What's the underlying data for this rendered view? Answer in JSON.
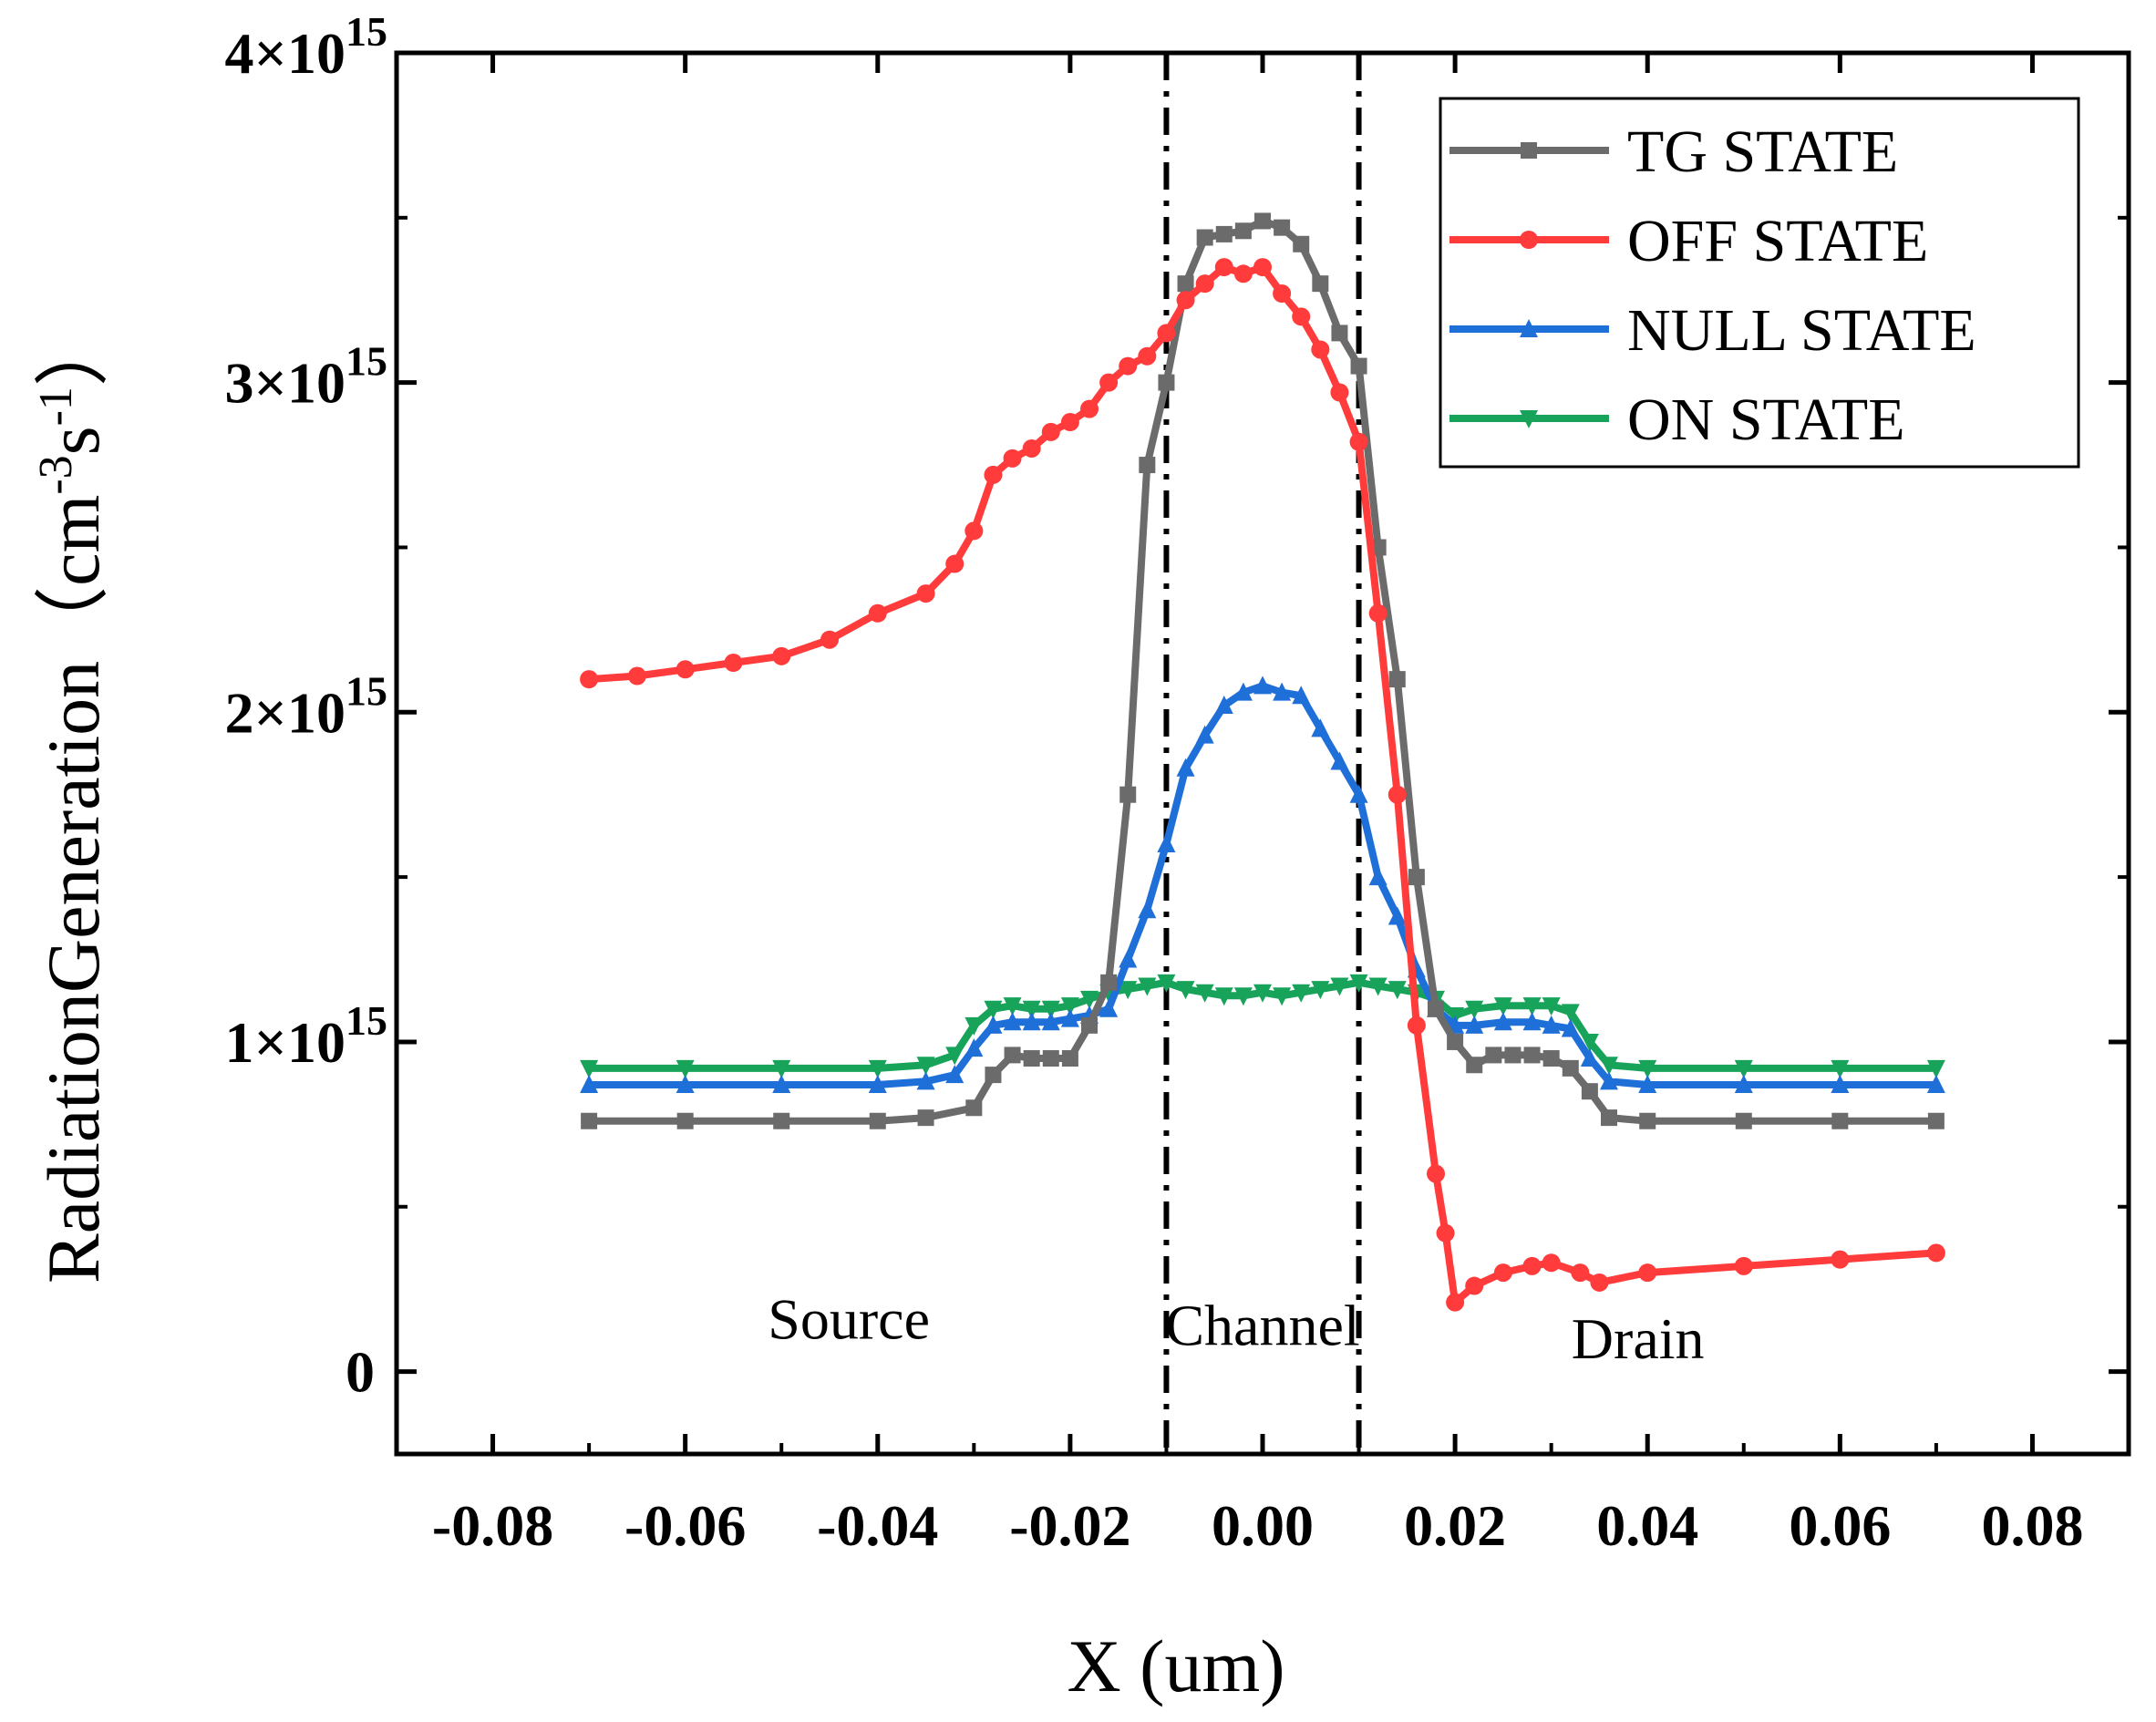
{
  "chart_data": {
    "type": "line",
    "title": "",
    "xlabel": "X (um)",
    "ylabel": "RadiationGeneration（cm-3s-1）",
    "ylabel_parts": {
      "main": "RadiationGeneration（cm",
      "sup1": "-3",
      "mid": "s",
      "sup2": "-1",
      "end": "）"
    },
    "xlim": [
      -0.09,
      0.09
    ],
    "ylim": [
      -0.25,
      4.0
    ],
    "y_unit_note": "values in units of 10^15",
    "xticks": [
      -0.08,
      -0.06,
      -0.04,
      -0.02,
      0.0,
      0.02,
      0.04,
      0.06,
      0.08
    ],
    "xtick_labels": [
      "-0.08",
      "-0.06",
      "-0.04",
      "-0.02",
      "0.00",
      "0.02",
      "0.04",
      "0.06",
      "0.08"
    ],
    "yticks": [
      0,
      1,
      2,
      3,
      4
    ],
    "ytick_labels": [
      {
        "value": 0,
        "base": "0",
        "exp": ""
      },
      {
        "value": 1,
        "base": "1×10",
        "exp": "15"
      },
      {
        "value": 2,
        "base": "2×10",
        "exp": "15"
      },
      {
        "value": 3,
        "base": "3×10",
        "exp": "15"
      },
      {
        "value": 4,
        "base": "4×10",
        "exp": "15"
      }
    ],
    "vlines": [
      -0.01,
      0.01
    ],
    "annotations": [
      {
        "text": "Source",
        "x": -0.043,
        "y": 0.1
      },
      {
        "text": "Channel",
        "x": 0.0,
        "y": 0.08
      },
      {
        "text": "Drain",
        "x": 0.039,
        "y": 0.04
      }
    ],
    "legend_position": "top-right",
    "series": [
      {
        "name": "TG STATE",
        "color": "#6b6b6b",
        "marker": "square",
        "x": [
          -0.07,
          -0.06,
          -0.05,
          -0.04,
          -0.035,
          -0.03,
          -0.028,
          -0.026,
          -0.024,
          -0.022,
          -0.02,
          -0.018,
          -0.016,
          -0.014,
          -0.012,
          -0.01,
          -0.008,
          -0.006,
          -0.004,
          -0.002,
          0.0,
          0.002,
          0.004,
          0.006,
          0.008,
          0.01,
          0.012,
          0.014,
          0.016,
          0.018,
          0.02,
          0.022,
          0.024,
          0.026,
          0.028,
          0.03,
          0.032,
          0.034,
          0.036,
          0.04,
          0.05,
          0.06,
          0.07
        ],
        "y": [
          0.76,
          0.76,
          0.76,
          0.76,
          0.77,
          0.8,
          0.9,
          0.96,
          0.95,
          0.95,
          0.95,
          1.05,
          1.18,
          1.75,
          2.75,
          3.0,
          3.3,
          3.44,
          3.45,
          3.46,
          3.49,
          3.47,
          3.42,
          3.3,
          3.15,
          3.05,
          2.5,
          2.1,
          1.5,
          1.1,
          1.0,
          0.93,
          0.96,
          0.96,
          0.96,
          0.95,
          0.92,
          0.85,
          0.77,
          0.76,
          0.76,
          0.76,
          0.76
        ]
      },
      {
        "name": "OFF STATE",
        "color": "#ff3b3b",
        "marker": "circle",
        "x": [
          -0.07,
          -0.065,
          -0.06,
          -0.055,
          -0.05,
          -0.045,
          -0.04,
          -0.035,
          -0.032,
          -0.03,
          -0.028,
          -0.026,
          -0.024,
          -0.022,
          -0.02,
          -0.018,
          -0.016,
          -0.014,
          -0.012,
          -0.01,
          -0.008,
          -0.006,
          -0.004,
          -0.002,
          0.0,
          0.002,
          0.004,
          0.006,
          0.008,
          0.01,
          0.012,
          0.014,
          0.016,
          0.018,
          0.019,
          0.02,
          0.022,
          0.025,
          0.028,
          0.03,
          0.033,
          0.035,
          0.04,
          0.05,
          0.06,
          0.07
        ],
        "y": [
          2.1,
          2.11,
          2.13,
          2.15,
          2.17,
          2.22,
          2.3,
          2.36,
          2.45,
          2.55,
          2.72,
          2.77,
          2.8,
          2.85,
          2.88,
          2.92,
          3.0,
          3.05,
          3.08,
          3.15,
          3.25,
          3.3,
          3.35,
          3.33,
          3.35,
          3.27,
          3.2,
          3.1,
          2.97,
          2.82,
          2.3,
          1.75,
          1.05,
          0.6,
          0.42,
          0.21,
          0.26,
          0.3,
          0.32,
          0.33,
          0.3,
          0.27,
          0.3,
          0.32,
          0.34,
          0.36
        ]
      },
      {
        "name": "NULL STATE",
        "color": "#1f6fd9",
        "marker": "triangle-up",
        "x": [
          -0.07,
          -0.06,
          -0.05,
          -0.04,
          -0.035,
          -0.032,
          -0.03,
          -0.028,
          -0.026,
          -0.024,
          -0.022,
          -0.02,
          -0.018,
          -0.016,
          -0.014,
          -0.012,
          -0.01,
          -0.008,
          -0.006,
          -0.004,
          -0.002,
          0.0,
          0.002,
          0.004,
          0.006,
          0.008,
          0.01,
          0.012,
          0.014,
          0.016,
          0.018,
          0.02,
          0.022,
          0.025,
          0.028,
          0.03,
          0.032,
          0.034,
          0.036,
          0.04,
          0.05,
          0.06,
          0.07
        ],
        "y": [
          0.87,
          0.87,
          0.87,
          0.87,
          0.88,
          0.9,
          0.98,
          1.05,
          1.06,
          1.06,
          1.06,
          1.07,
          1.08,
          1.1,
          1.25,
          1.4,
          1.6,
          1.83,
          1.93,
          2.02,
          2.06,
          2.08,
          2.06,
          2.05,
          1.95,
          1.85,
          1.75,
          1.5,
          1.38,
          1.22,
          1.1,
          1.05,
          1.05,
          1.06,
          1.06,
          1.05,
          1.04,
          0.95,
          0.88,
          0.87,
          0.87,
          0.87,
          0.87
        ]
      },
      {
        "name": "ON STATE",
        "color": "#17a35a",
        "marker": "triangle-down",
        "x": [
          -0.07,
          -0.06,
          -0.05,
          -0.04,
          -0.035,
          -0.032,
          -0.03,
          -0.028,
          -0.026,
          -0.024,
          -0.022,
          -0.02,
          -0.018,
          -0.016,
          -0.014,
          -0.012,
          -0.01,
          -0.008,
          -0.006,
          -0.004,
          -0.002,
          0.0,
          0.002,
          0.004,
          0.006,
          0.008,
          0.01,
          0.012,
          0.014,
          0.016,
          0.018,
          0.02,
          0.022,
          0.025,
          0.028,
          0.03,
          0.032,
          0.034,
          0.036,
          0.04,
          0.05,
          0.06,
          0.07
        ],
        "y": [
          0.92,
          0.92,
          0.92,
          0.92,
          0.93,
          0.96,
          1.05,
          1.1,
          1.11,
          1.1,
          1.1,
          1.11,
          1.13,
          1.15,
          1.16,
          1.17,
          1.18,
          1.16,
          1.15,
          1.14,
          1.14,
          1.15,
          1.14,
          1.15,
          1.16,
          1.17,
          1.18,
          1.17,
          1.16,
          1.15,
          1.13,
          1.08,
          1.1,
          1.11,
          1.11,
          1.11,
          1.09,
          1.0,
          0.93,
          0.92,
          0.92,
          0.92,
          0.92
        ]
      }
    ]
  }
}
